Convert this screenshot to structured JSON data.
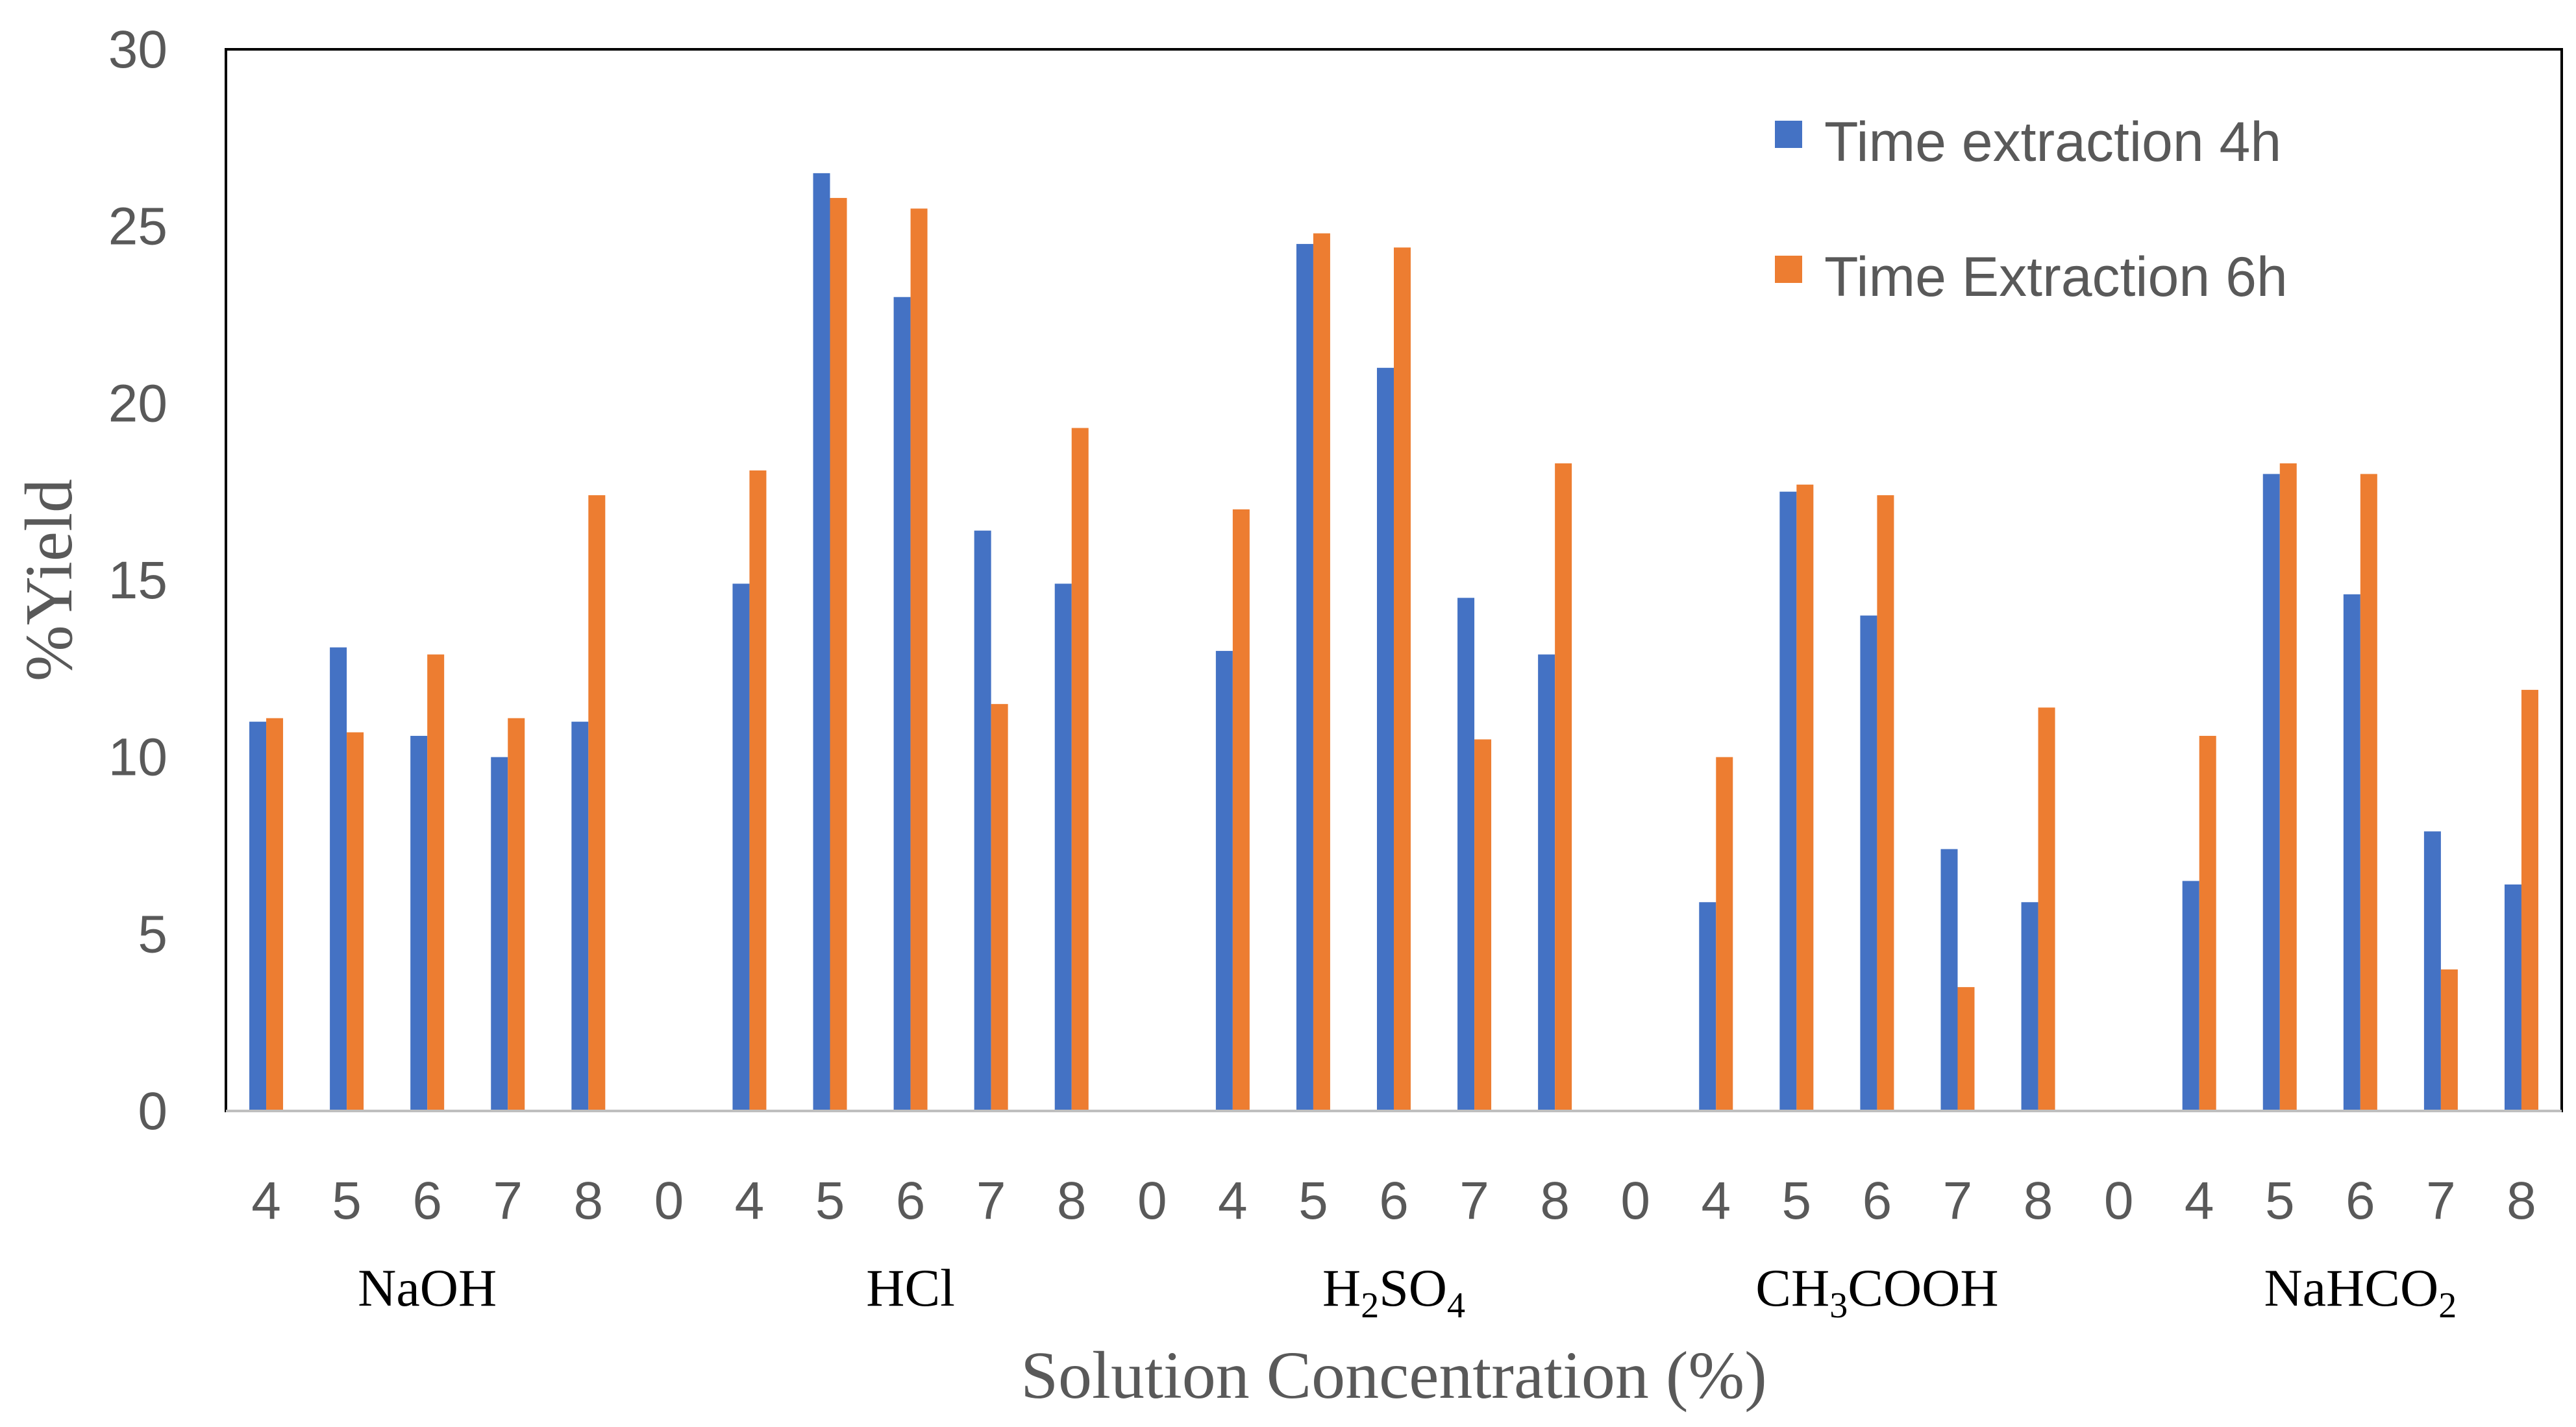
{
  "chart_data": {
    "type": "bar",
    "title": "",
    "xlabel": "Solution Concentration (%)",
    "ylabel": "%Yield",
    "ylim": [
      0,
      30
    ],
    "yticks": [
      "0",
      "5",
      "10",
      "15",
      "20",
      "25",
      "30"
    ],
    "grid": false,
    "legend_position": "top-right",
    "categories": [
      "4",
      "5",
      "6",
      "7",
      "8",
      "0",
      "4",
      "5",
      "6",
      "7",
      "8",
      "0",
      "4",
      "5",
      "6",
      "7",
      "8",
      "0",
      "4",
      "5",
      "6",
      "7",
      "8",
      "0",
      "4",
      "5",
      "6",
      "7",
      "8"
    ],
    "groups": [
      {
        "name": "NaOH",
        "base": "NaOH",
        "sub": "",
        "rest": ""
      },
      {
        "name": "HCl",
        "base": "HCl",
        "sub": "",
        "rest": ""
      },
      {
        "name": "H2SO4",
        "base": "H",
        "sub": "2",
        "rest": "SO",
        "sub2": "4"
      },
      {
        "name": "CH3COOH",
        "base": "CH",
        "sub": "3",
        "rest": "COOH"
      },
      {
        "name": "NaHCO2",
        "base": "NaHCO",
        "sub": "2",
        "rest": ""
      }
    ],
    "series": [
      {
        "name": "Time extraction 4h",
        "color": "#4472C4",
        "values": [
          11,
          13.1,
          10.6,
          10,
          11,
          0,
          14.9,
          26.5,
          23,
          16.4,
          14.9,
          0,
          13,
          24.5,
          21,
          14.5,
          12.9,
          0,
          5.9,
          17.5,
          14,
          7.4,
          5.9,
          0,
          6.5,
          18,
          14.6,
          7.9,
          6.4
        ]
      },
      {
        "name": "Time Extraction 6h",
        "color": "#ED7D31",
        "values": [
          11.1,
          10.7,
          12.9,
          11.1,
          17.4,
          0,
          18.1,
          25.8,
          25.5,
          11.5,
          19.3,
          0,
          17,
          24.8,
          24.4,
          10.5,
          18.3,
          0,
          10,
          17.7,
          17.4,
          3.5,
          11.4,
          0,
          10.6,
          18.3,
          18,
          4,
          11.9
        ]
      }
    ]
  }
}
